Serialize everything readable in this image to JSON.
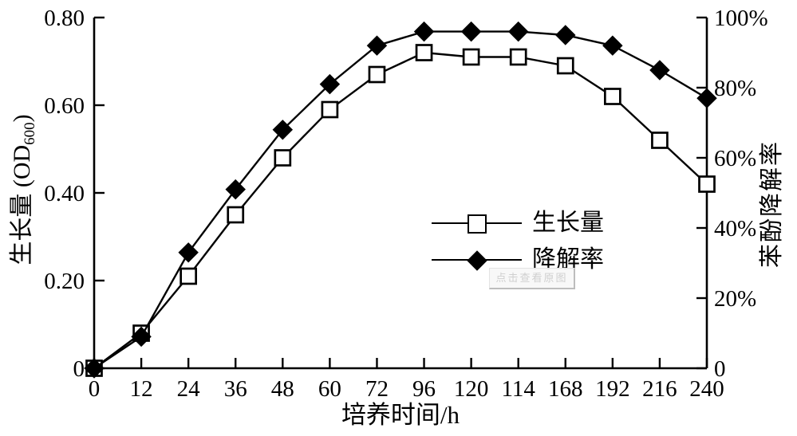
{
  "figure": {
    "background": "#ffffff",
    "ink_color": "#000000"
  },
  "axes": {
    "x": {
      "label": "培养时间/h",
      "tick_labels": [
        "0",
        "12",
        "24",
        "36",
        "48",
        "60",
        "72",
        "96",
        "120",
        "114",
        "168",
        "192",
        "216",
        "240"
      ]
    },
    "y_left": {
      "label_prefix": "生长量 (OD",
      "label_sub": "600",
      "label_suffix": ")",
      "tick_labels": [
        "0.80",
        "0.60",
        "0.40",
        "0.20",
        "0"
      ],
      "tick_values": [
        0.8,
        0.6,
        0.4,
        0.2,
        0
      ],
      "min": 0,
      "max": 0.8
    },
    "y_right": {
      "label": "苯酚降解率",
      "tick_labels": [
        "100%",
        "80%",
        "60%",
        "40%",
        "20%",
        "0"
      ],
      "tick_values": [
        100,
        80,
        60,
        40,
        20,
        0
      ],
      "min": 0,
      "max": 100
    }
  },
  "legend": {
    "items": [
      {
        "label": "生长量",
        "marker": "open-square"
      },
      {
        "label": "降解率",
        "marker": "filled-diamond"
      }
    ]
  },
  "watermark": {
    "text": "点击查看原图"
  },
  "chart_data": {
    "type": "line",
    "categories": [
      "0",
      "12",
      "24",
      "36",
      "48",
      "60",
      "72",
      "96",
      "120",
      "114",
      "168",
      "192",
      "216",
      "240"
    ],
    "x_ticks_evenly_spaced": true,
    "label_note": "tick printed as '114' between 120 and 168 (appears as shown in source figure)",
    "title": "",
    "xlabel": "培养时间/h",
    "ylabel_left": "生长量 (OD600)",
    "ylabel_right": "苯酚降解率",
    "ylim_left": [
      0,
      0.8
    ],
    "ylim_right_percent": [
      0,
      100
    ],
    "grid": false,
    "legend_position": "inside center-right",
    "series": [
      {
        "name": "生长量",
        "axis": "left",
        "marker": "open-square",
        "line_color": "#000000",
        "values": [
          0,
          0.08,
          0.21,
          0.35,
          0.48,
          0.59,
          0.67,
          0.72,
          0.71,
          0.71,
          0.69,
          0.62,
          0.52,
          0.42
        ]
      },
      {
        "name": "降解率",
        "axis": "right",
        "marker": "filled-diamond",
        "line_color": "#000000",
        "values": [
          0,
          9,
          33,
          51,
          68,
          81,
          92,
          96,
          96,
          96,
          95,
          92,
          85,
          77
        ]
      }
    ]
  }
}
